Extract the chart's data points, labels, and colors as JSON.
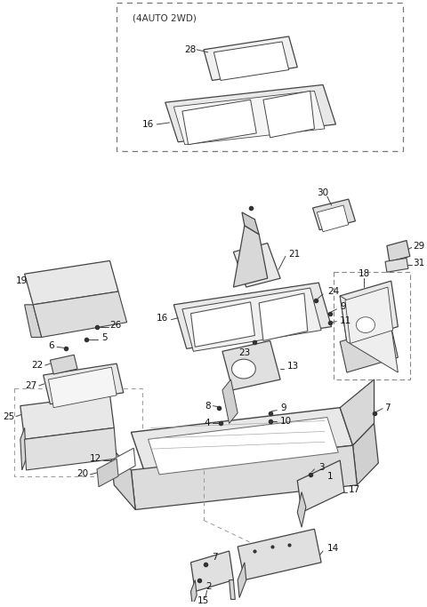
{
  "bg_color": "#ffffff",
  "line_color": "#444444",
  "inset_label": "(4AUTO 2WD)",
  "figsize": [
    4.8,
    6.83
  ],
  "dpi": 100
}
